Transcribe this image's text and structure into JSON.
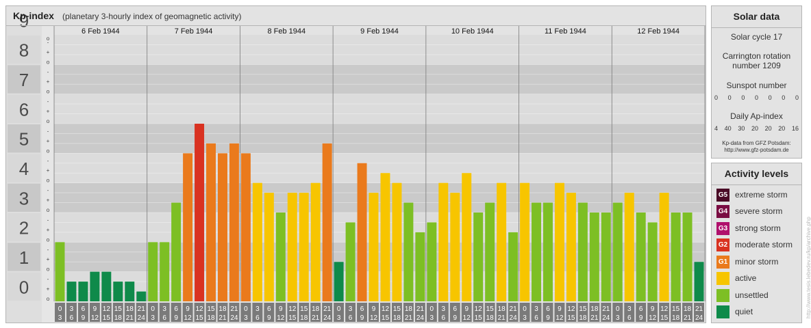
{
  "header": {
    "title": "Kp-index",
    "subtitle": "(planetary 3-hourly index of geomagnetic activity)"
  },
  "chart_data": {
    "type": "bar",
    "title": "Kp-index",
    "subtitle": "(planetary 3-hourly index of geomagnetic activity)",
    "ylim": [
      0,
      9
    ],
    "y_major_ticks": [
      "0",
      "1",
      "2",
      "3",
      "4",
      "5",
      "6",
      "7",
      "8",
      "9"
    ],
    "y_minor_ticks": [
      "o",
      "+",
      "-"
    ],
    "days": [
      "6 Feb 1944",
      "7 Feb 1944",
      "8 Feb 1944",
      "9 Feb 1944",
      "10 Feb 1944",
      "11 Feb 1944",
      "12 Feb 1944"
    ],
    "interval_labels": [
      [
        "0",
        "3"
      ],
      [
        "3",
        "6"
      ],
      [
        "6",
        "9"
      ],
      [
        "9",
        "12"
      ],
      [
        "12",
        "15"
      ],
      [
        "15",
        "18"
      ],
      [
        "18",
        "21"
      ],
      [
        "21",
        "24"
      ]
    ],
    "series": [
      {
        "values": [
          2.0,
          0.667,
          0.667,
          1.0,
          1.0,
          0.667,
          0.667,
          0.333,
          2.0,
          2.0,
          3.333,
          5.0,
          6.0,
          5.333,
          5.0,
          5.333,
          5.0,
          4.0,
          3.667,
          3.0,
          3.667,
          3.667,
          4.0,
          5.333,
          1.333,
          2.667,
          4.667,
          3.667,
          4.333,
          4.0,
          3.333,
          2.333,
          2.667,
          4.0,
          3.667,
          4.333,
          3.0,
          3.333,
          4.0,
          2.333,
          4.0,
          3.333,
          3.333,
          4.0,
          3.667,
          3.333,
          3.0,
          3.0,
          3.333,
          3.667,
          3.0,
          2.667,
          3.667,
          3.0,
          3.0,
          1.333
        ]
      }
    ],
    "grid": true
  },
  "solar": {
    "title": "Solar data",
    "cycle": "Solar cycle 17",
    "carrington_line1": "Carrington rotation",
    "carrington_line2": "number 1209",
    "sunspot_title": "Sunspot number",
    "sunspots": [
      "0",
      "0",
      "0",
      "0",
      "0",
      "0",
      "0"
    ],
    "ap_title": "Daily Ap-index",
    "ap_values": [
      "4",
      "40",
      "30",
      "20",
      "20",
      "20",
      "16"
    ],
    "credit_line1": "Kp-data from GFZ Potsdam:",
    "credit_line2": "http://www.gfz-potsdam.de"
  },
  "activity": {
    "title": "Activity levels",
    "levels": [
      {
        "code": "G5",
        "label": "extreme storm",
        "color": "#4a0a26"
      },
      {
        "code": "G4",
        "label": "severe storm",
        "color": "#7a0c42"
      },
      {
        "code": "G3",
        "label": "strong storm",
        "color": "#b0106c"
      },
      {
        "code": "G2",
        "label": "moderate storm",
        "color": "#d93221"
      },
      {
        "code": "G1",
        "label": "minor storm",
        "color": "#ea7a1c"
      },
      {
        "code": "",
        "label": "active",
        "color": "#f7c500"
      },
      {
        "code": "",
        "label": "unsettled",
        "color": "#7dbf24"
      },
      {
        "code": "",
        "label": "quiet",
        "color": "#0f8a4a"
      }
    ]
  },
  "watermark": "http://www.tesis.lebedev.ru/kp/archive.php"
}
